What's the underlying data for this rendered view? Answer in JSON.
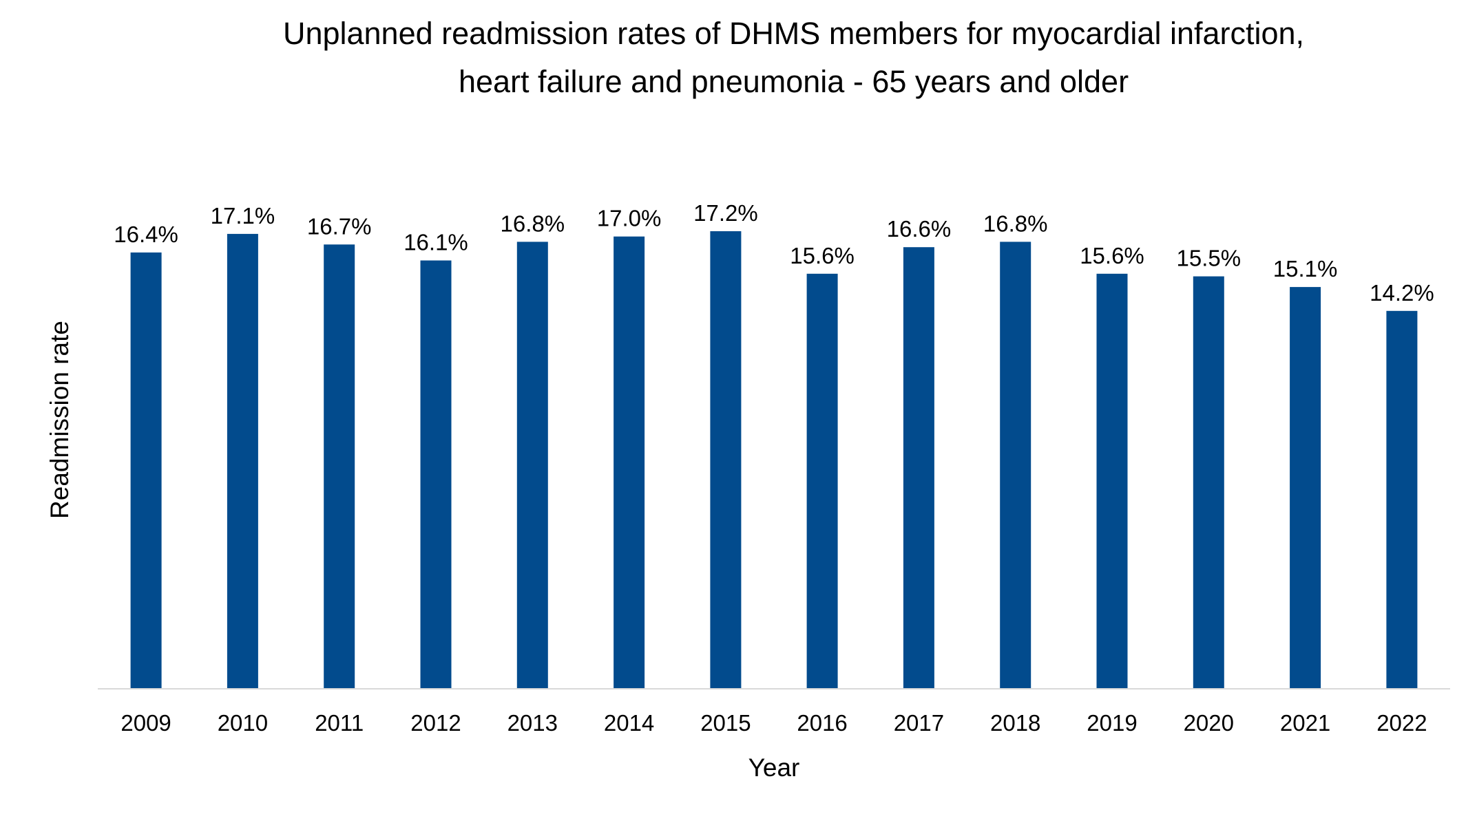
{
  "chart_data": {
    "type": "bar",
    "title": "Unplanned readmission rates of DHMS members for myocardial infarction,\nheart failure and pneumonia - 65 years and older",
    "xlabel": "Year",
    "ylabel": "Readmission rate",
    "categories": [
      "2009",
      "2010",
      "2011",
      "2012",
      "2013",
      "2014",
      "2015",
      "2016",
      "2017",
      "2018",
      "2019",
      "2020",
      "2021",
      "2022"
    ],
    "values": [
      16.4,
      17.1,
      16.7,
      16.1,
      16.8,
      17.0,
      17.2,
      15.6,
      16.6,
      16.8,
      15.6,
      15.5,
      15.1,
      14.2
    ],
    "data_labels": [
      "16.4%",
      "17.1%",
      "16.7%",
      "16.1%",
      "16.8%",
      "17.0%",
      "17.2%",
      "15.6%",
      "16.6%",
      "16.8%",
      "15.6%",
      "15.5%",
      "15.1%",
      "14.2%"
    ],
    "ylim": [
      0,
      17.2
    ],
    "grid": false,
    "legend": "none",
    "bar_color": "#024B8D",
    "axis_color": "#D9D9D9"
  }
}
